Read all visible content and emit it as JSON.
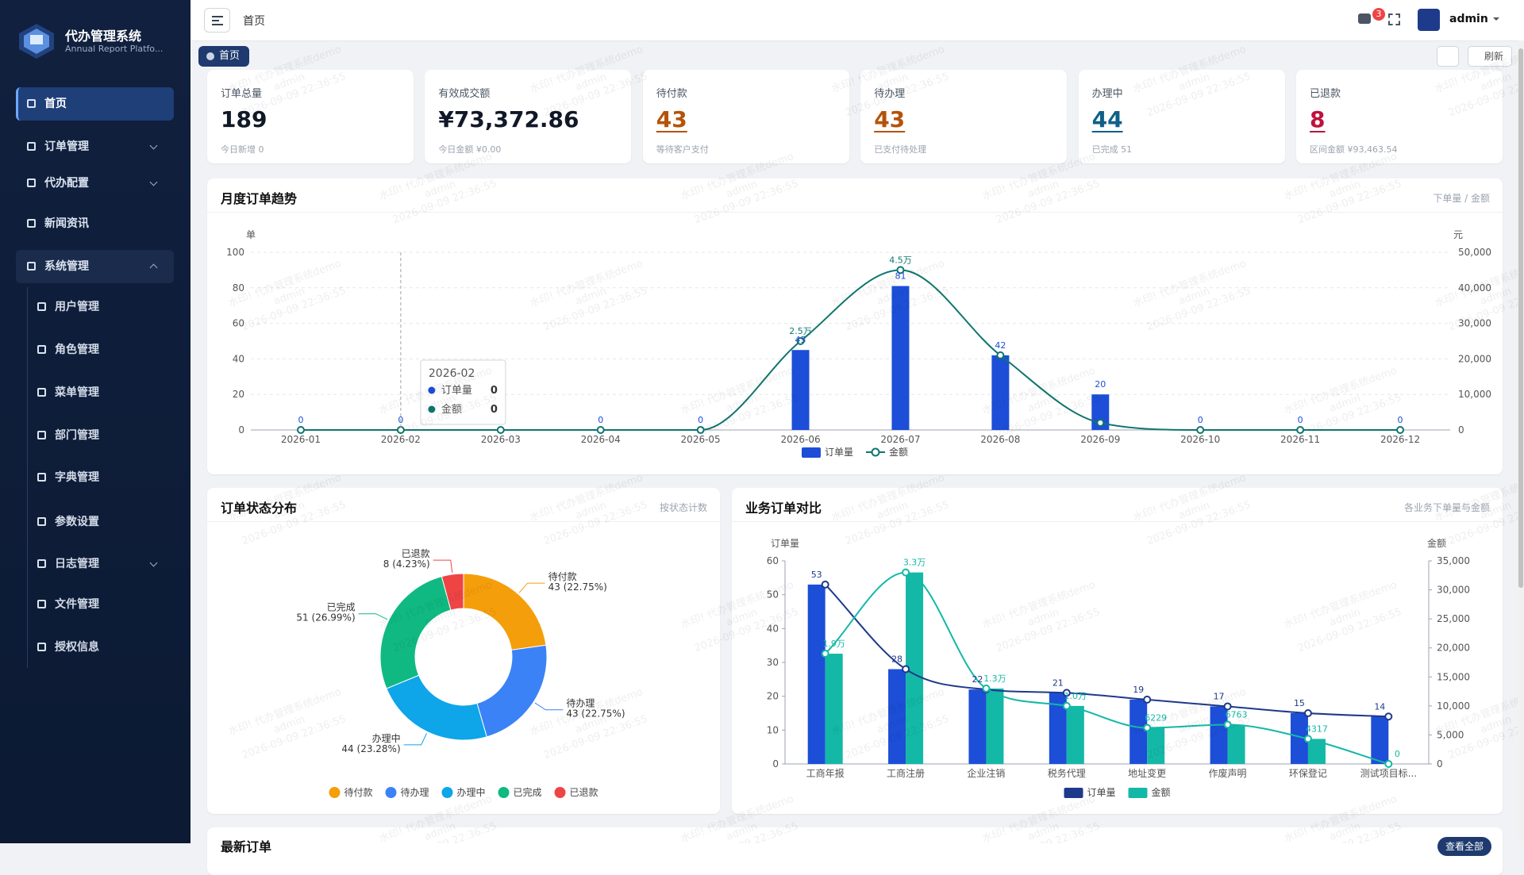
{
  "sidebar": {
    "brand": "代办管理系统",
    "subtitle": "Annual Report Platfo...",
    "menu": [
      {
        "label": "首页",
        "active": true
      },
      {
        "label": "订单管理",
        "arrow": "down"
      },
      {
        "label": "代办配置",
        "arrow": "down"
      },
      {
        "label": "新闻资讯"
      },
      {
        "label": "系统管理",
        "arrow": "up",
        "children": [
          {
            "label": "用户管理"
          },
          {
            "label": "角色管理"
          },
          {
            "label": "菜单管理"
          },
          {
            "label": "部门管理"
          },
          {
            "label": "字典管理"
          },
          {
            "label": "参数设置"
          },
          {
            "label": "日志管理",
            "arrow": "down"
          },
          {
            "label": "文件管理"
          },
          {
            "label": "授权信息"
          }
        ]
      }
    ]
  },
  "header": {
    "breadcrumb": "首页",
    "notifications": 3,
    "user": "admin"
  },
  "tabs": {
    "active": "首页",
    "refresh": "刷新"
  },
  "cards": [
    {
      "label": "订单总量",
      "value": "189",
      "sub": "今日新增 0",
      "color": "#111827"
    },
    {
      "label": "有效成交额",
      "value": "¥73,372.86",
      "sub": "今日金额 ¥0.00",
      "color": "#111827"
    },
    {
      "label": "待付款",
      "value": "43",
      "sub": "等待客户支付",
      "color": "#b45309",
      "underline": true
    },
    {
      "label": "待办理",
      "value": "43",
      "sub": "已支付待处理",
      "color": "#b45309",
      "underline": true
    },
    {
      "label": "办理中",
      "value": "44",
      "sub": "已完成 51",
      "color": "#0f5f8a",
      "underline": true
    },
    {
      "label": "已退款",
      "value": "8",
      "sub": "区间金额 ¥93,463.54",
      "color": "#be123c",
      "underline": true
    }
  ],
  "chart_data": [
    {
      "type": "bar-line",
      "title": "月度订单趋势",
      "subtitle": "下单量 / 金额",
      "y_label": "单",
      "y2_label": "元",
      "categories": [
        "2026-01",
        "2026-02",
        "2026-03",
        "2026-04",
        "2026-05",
        "2026-06",
        "2026-07",
        "2026-08",
        "2026-09",
        "2026-10",
        "2026-11",
        "2026-12"
      ],
      "series": [
        {
          "name": "订单量",
          "color": "#1d4ed8",
          "marks": "bar",
          "values": [
            0,
            0,
            0,
            0,
            0,
            45,
            81,
            42,
            20,
            0,
            0,
            0
          ]
        },
        {
          "name": "金额",
          "color": "#0f766e",
          "marks": "line",
          "axis": "y2",
          "values": [
            0,
            0,
            0,
            0,
            0,
            25000,
            45000,
            21000,
            2000,
            0,
            0,
            0
          ],
          "value_labels": [
            null,
            null,
            null,
            null,
            null,
            "2.5万",
            "4.5万",
            null,
            null,
            null,
            null,
            null
          ]
        }
      ],
      "ylim": [
        0,
        100
      ],
      "yticks": [
        0,
        20,
        40,
        60,
        80,
        100
      ],
      "y2lim": [
        0,
        50000
      ],
      "y2ticks": [
        0,
        {
          "value": 10000,
          "label": "10,000"
        },
        {
          "value": 20000,
          "label": "20,000"
        },
        {
          "value": 30000,
          "label": "30,000"
        },
        {
          "value": 40000,
          "label": "40,000"
        },
        {
          "value": 50000,
          "label": "50,000"
        }
      ],
      "grid": true,
      "legend": "bottom",
      "tooltip": {
        "title": "2026-02",
        "values": [
          0,
          0
        ]
      }
    },
    {
      "type": "pie",
      "title": "订单状态分布",
      "subtitle": "按状态计数",
      "donut": true,
      "categories": [
        "待付款",
        "待办理",
        "办理中",
        "已完成",
        "已退款"
      ],
      "values": [
        43,
        43,
        44,
        51,
        8
      ],
      "value_labels": [
        "43 (22.75%)",
        "43 (22.75%)",
        "44 (23.28%)",
        "51 (26.99%)",
        "8 (4.23%)"
      ],
      "colors": [
        "#f59e0b",
        "#3b82f6",
        "#0ea5e9",
        "#10b981",
        "#ef4444"
      ],
      "legend": "bottom"
    },
    {
      "type": "bar-line",
      "title": "业务订单对比",
      "subtitle": "各业务下单量与金额",
      "y_label": "订单量",
      "y2_label": "金额",
      "categories": [
        "工商年报",
        "工商注册",
        "企业注销",
        "税务代理",
        "地址变更",
        "作废声明",
        "环保登记",
        "测试项目标..."
      ],
      "series": [
        {
          "name": "订单量",
          "color": "#1d4ed8",
          "line_color": "#1e3a8a",
          "marks": "bar+line",
          "values": [
            53,
            28,
            22,
            21,
            19,
            17,
            15,
            14
          ]
        },
        {
          "name": "金额",
          "color": "#14b8a6",
          "line_color": "#14b8a6",
          "marks": "bar+line",
          "axis": "y2",
          "values": [
            19000,
            33000,
            13000,
            10000,
            6229,
            6763,
            4317,
            0
          ],
          "value_labels": [
            "1.9万",
            "3.3万",
            "1.3万",
            "1.0万",
            "6229",
            "6763",
            "4317",
            "0"
          ]
        }
      ],
      "ylim": [
        0,
        60
      ],
      "yticks": [
        0,
        10,
        20,
        30,
        40,
        50,
        60
      ],
      "y2lim": [
        0,
        35000
      ],
      "y2ticks": [
        0,
        {
          "value": 5000,
          "label": "5,000"
        },
        {
          "value": 10000,
          "label": "10,000"
        },
        {
          "value": 15000,
          "label": "15,000"
        },
        {
          "value": 20000,
          "label": "20,000"
        },
        {
          "value": 25000,
          "label": "25,000"
        },
        {
          "value": 30000,
          "label": "30,000"
        },
        {
          "value": 35000,
          "label": "35,000"
        }
      ],
      "grid": false,
      "legend": "bottom"
    }
  ],
  "latest_orders": {
    "title": "最新订单",
    "action": "查看全部"
  },
  "watermark": [
    "水印! 代办管理系统demo",
    "admin",
    "2026-09-09 22:36:55"
  ]
}
